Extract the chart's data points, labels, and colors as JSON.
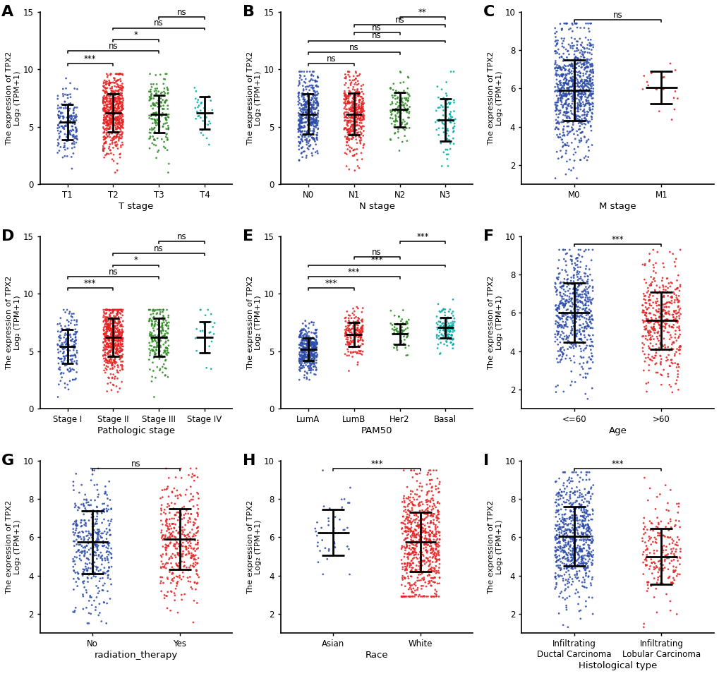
{
  "panels": {
    "A": {
      "letter": "A",
      "xlabel": "T stage",
      "ylabel": "The expression of TPX2\nLog₂ (TPM+1)",
      "ylim": [
        0,
        15
      ],
      "yticks": [
        0,
        5,
        10,
        15
      ],
      "groups": [
        "T1",
        "T2",
        "T3",
        "T4"
      ],
      "colors": [
        "#2B4BA8",
        "#E52222",
        "#2E8B22",
        "#00AAAA"
      ],
      "n_points": [
        175,
        590,
        175,
        32
      ],
      "means": [
        5.4,
        6.2,
        6.1,
        6.2
      ],
      "stds": [
        1.55,
        1.65,
        1.65,
        1.4
      ],
      "y_min": 1.0,
      "y_max": 9.6,
      "jitter": 0.22,
      "comparisons": [
        {
          "g1": 0,
          "g2": 1,
          "label": "***",
          "y": 10.5
        },
        {
          "g1": 0,
          "g2": 2,
          "label": "ns",
          "y": 11.6
        },
        {
          "g1": 1,
          "g2": 2,
          "label": "*",
          "y": 12.6
        },
        {
          "g1": 1,
          "g2": 3,
          "label": "ns",
          "y": 13.6
        },
        {
          "g1": 2,
          "g2": 3,
          "label": "ns",
          "y": 14.55
        }
      ]
    },
    "B": {
      "letter": "B",
      "xlabel": "N stage",
      "ylabel": "The expression of TPX2\nLog₂ (TPM+1)",
      "ylim": [
        0,
        15
      ],
      "yticks": [
        0,
        5,
        10,
        15
      ],
      "groups": [
        "N0",
        "N1",
        "N2",
        "N3"
      ],
      "colors": [
        "#2B4BA8",
        "#E52222",
        "#2E8B22",
        "#00AAAA"
      ],
      "n_points": [
        430,
        390,
        125,
        82
      ],
      "means": [
        6.1,
        6.1,
        6.5,
        5.6
      ],
      "stds": [
        1.75,
        1.8,
        1.5,
        1.85
      ],
      "y_min": 1.0,
      "y_max": 9.8,
      "jitter": 0.22,
      "comparisons": [
        {
          "g1": 0,
          "g2": 1,
          "label": "ns",
          "y": 10.5
        },
        {
          "g1": 0,
          "g2": 2,
          "label": "ns",
          "y": 11.5
        },
        {
          "g1": 0,
          "g2": 3,
          "label": "ns",
          "y": 12.5
        },
        {
          "g1": 1,
          "g2": 2,
          "label": "ns",
          "y": 13.2
        },
        {
          "g1": 1,
          "g2": 3,
          "label": "ns",
          "y": 13.9
        },
        {
          "g1": 2,
          "g2": 3,
          "label": "**",
          "y": 14.55
        }
      ]
    },
    "C": {
      "letter": "C",
      "xlabel": "M stage",
      "ylabel": "The expression of TPX2\nLog₂ (TPM+1)",
      "ylim": [
        1,
        10
      ],
      "yticks": [
        2,
        4,
        6,
        8,
        10
      ],
      "groups": [
        "M0",
        "M1"
      ],
      "colors": [
        "#2B4BA8",
        "#E52222"
      ],
      "n_points": [
        820,
        18
      ],
      "means": [
        5.9,
        6.05
      ],
      "stds": [
        1.6,
        0.85
      ],
      "y_min": 1.3,
      "y_max": 9.4,
      "jitter": 0.22,
      "comparisons": [
        {
          "g1": 0,
          "g2": 1,
          "label": "ns",
          "y": 9.6
        }
      ]
    },
    "D": {
      "letter": "D",
      "xlabel": "Pathologic stage",
      "ylabel": "The expression of TPX2\nLog₂ (TPM+1)",
      "ylim": [
        0,
        15
      ],
      "yticks": [
        0,
        5,
        10,
        15
      ],
      "groups": [
        "Stage I",
        "Stage II",
        "Stage III",
        "Stage IV"
      ],
      "colors": [
        "#2B4BA8",
        "#E52222",
        "#2E8B22",
        "#00AAAA"
      ],
      "n_points": [
        175,
        530,
        215,
        22
      ],
      "means": [
        5.4,
        6.2,
        6.2,
        6.2
      ],
      "stds": [
        1.5,
        1.65,
        1.65,
        1.35
      ],
      "y_min": 1.0,
      "y_max": 8.6,
      "jitter": 0.22,
      "comparisons": [
        {
          "g1": 0,
          "g2": 1,
          "label": "***",
          "y": 10.5
        },
        {
          "g1": 0,
          "g2": 2,
          "label": "ns",
          "y": 11.5
        },
        {
          "g1": 1,
          "g2": 2,
          "label": "*",
          "y": 12.5
        },
        {
          "g1": 1,
          "g2": 3,
          "label": "ns",
          "y": 13.5
        },
        {
          "g1": 2,
          "g2": 3,
          "label": "ns",
          "y": 14.55
        }
      ]
    },
    "E": {
      "letter": "E",
      "xlabel": "PAM50",
      "ylabel": "The expression of TPX2\nLog₂ (TPM+1)",
      "ylim": [
        0,
        15
      ],
      "yticks": [
        0,
        5,
        10,
        15
      ],
      "groups": [
        "LumA",
        "LumB",
        "Her2",
        "Basal"
      ],
      "colors": [
        "#2B4BA8",
        "#E52222",
        "#2E8B22",
        "#00AAAA"
      ],
      "n_points": [
        410,
        185,
        62,
        135
      ],
      "means": [
        5.15,
        6.45,
        6.5,
        7.05
      ],
      "stds": [
        1.0,
        1.05,
        0.9,
        0.9
      ],
      "y_min": 2.5,
      "y_max": 9.5,
      "jitter": 0.2,
      "comparisons": [
        {
          "g1": 0,
          "g2": 1,
          "label": "***",
          "y": 10.5
        },
        {
          "g1": 0,
          "g2": 2,
          "label": "***",
          "y": 11.5
        },
        {
          "g1": 0,
          "g2": 3,
          "label": "***",
          "y": 12.5
        },
        {
          "g1": 1,
          "g2": 2,
          "label": "ns",
          "y": 13.2
        },
        {
          "g1": 2,
          "g2": 3,
          "label": "***",
          "y": 14.55
        }
      ]
    },
    "F": {
      "letter": "F",
      "xlabel": "Age",
      "ylabel": "The expression of TPX2\nLog₂ (TPM+1)",
      "ylim": [
        1,
        10
      ],
      "yticks": [
        2,
        4,
        6,
        8,
        10
      ],
      "groups": [
        "<=60",
        ">60"
      ],
      "colors": [
        "#2B4BA8",
        "#E52222"
      ],
      "n_points": [
        555,
        425
      ],
      "means": [
        6.0,
        5.6
      ],
      "stds": [
        1.55,
        1.5
      ],
      "y_min": 1.5,
      "y_max": 9.3,
      "jitter": 0.22,
      "comparisons": [
        {
          "g1": 0,
          "g2": 1,
          "label": "***",
          "y": 9.6
        }
      ]
    },
    "G": {
      "letter": "G",
      "xlabel": "radiation_therapy",
      "ylabel": "The expression of TPX2\nLog₂ (TPM+1)",
      "ylim": [
        1,
        10
      ],
      "yticks": [
        2,
        4,
        6,
        8,
        10
      ],
      "groups": [
        "No",
        "Yes"
      ],
      "colors": [
        "#2B4BA8",
        "#E52222"
      ],
      "n_points": [
        405,
        385
      ],
      "means": [
        5.75,
        5.9
      ],
      "stds": [
        1.65,
        1.6
      ],
      "y_min": 1.5,
      "y_max": 9.6,
      "jitter": 0.22,
      "comparisons": [
        {
          "g1": 0,
          "g2": 1,
          "label": "ns",
          "y": 9.6
        }
      ]
    },
    "H": {
      "letter": "H",
      "xlabel": "Race",
      "ylabel": "The expression of TPX2\nLog₂ (TPM+1)",
      "ylim": [
        1,
        10
      ],
      "yticks": [
        2,
        4,
        6,
        8,
        10
      ],
      "groups": [
        "Asian",
        "White"
      ],
      "colors": [
        "#2B4BA8",
        "#E52222"
      ],
      "n_points": [
        42,
        690
      ],
      "means": [
        6.25,
        5.75
      ],
      "stds": [
        1.2,
        1.55
      ],
      "y_min": 2.9,
      "y_max": 9.5,
      "jitter": 0.22,
      "comparisons": [
        {
          "g1": 0,
          "g2": 1,
          "label": "***",
          "y": 9.6
        }
      ]
    },
    "I": {
      "letter": "I",
      "xlabel": "Histological type",
      "ylabel": "The expression of TPX2\nLog₂ (TPM+1)",
      "ylim": [
        1,
        10
      ],
      "yticks": [
        2,
        4,
        6,
        8,
        10
      ],
      "groups": [
        "Infiltrating\nDuctal Carcinoma",
        "Infiltrating\nLobular Carcinoma"
      ],
      "colors": [
        "#2B4BA8",
        "#E52222"
      ],
      "n_points": [
        690,
        205
      ],
      "means": [
        6.05,
        5.0
      ],
      "stds": [
        1.55,
        1.45
      ],
      "y_min": 1.3,
      "y_max": 9.4,
      "jitter": 0.22,
      "comparisons": [
        {
          "g1": 0,
          "g2": 1,
          "label": "***",
          "y": 9.6
        }
      ]
    }
  },
  "panel_order": [
    "A",
    "B",
    "C",
    "D",
    "E",
    "F",
    "G",
    "H",
    "I"
  ],
  "figure_bg": "#ffffff",
  "dot_size": 4,
  "dot_alpha": 0.85,
  "seed": 42
}
